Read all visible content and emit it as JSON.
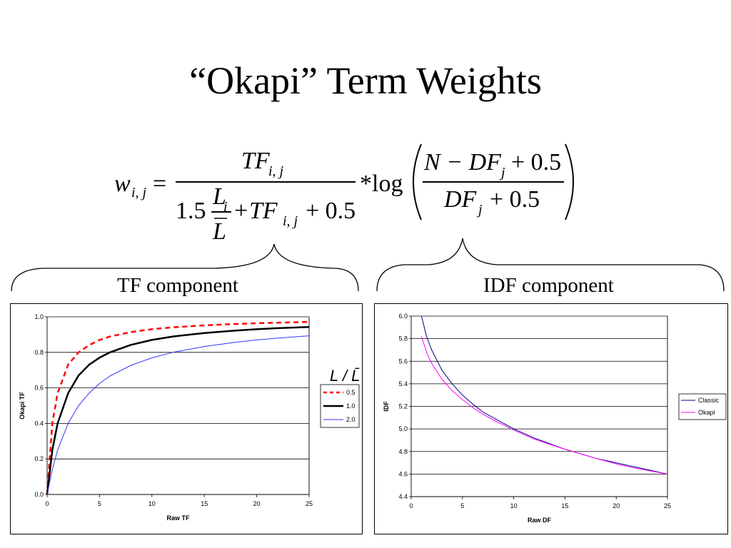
{
  "slide": {
    "title": "“Okapi” Term Weights",
    "tf_component_label": "TF component",
    "idf_component_label": "IDF component"
  },
  "formula": {
    "lhs_w": "w",
    "lhs_sub": "i, j",
    "num_tf": "TF",
    "num_sub": "i, j",
    "den_coef": "1.5",
    "den_L": "L",
    "den_L_sub": "i",
    "den_Lbar": "L",
    "den_plus_tf": "+TF",
    "den_tf_sub": "i, j",
    "den_plus": "+ 0.5",
    "times_log": "*log",
    "idf_num": "N − DF",
    "idf_num_sub": "j",
    "idf_num_plus": "+ 0.5",
    "idf_den": "DF",
    "idf_den_sub": "j",
    "idf_den_plus": "+ 0.5",
    "equals": "="
  },
  "chart_data": [
    {
      "type": "line",
      "xlabel": "Raw TF",
      "ylabel": "Okapi TF",
      "xlim": [
        0,
        25
      ],
      "ylim": [
        0,
        1.0
      ],
      "xticks": [
        0,
        5,
        10,
        15,
        20,
        25
      ],
      "yticks": [
        "0.0",
        "0.2",
        "0.4",
        "0.6",
        "0.8",
        "1.0"
      ],
      "legend_title": "L / L̄",
      "legend_position": "right",
      "grid": true,
      "series": [
        {
          "name": "0.5",
          "color": "#ff0000",
          "dash": "dash",
          "x": [
            0,
            0.5,
            1,
            2,
            3,
            4,
            5,
            6,
            8,
            10,
            12,
            15,
            18,
            20,
            22,
            25
          ],
          "y": [
            0,
            0.4,
            0.57,
            0.73,
            0.8,
            0.84,
            0.87,
            0.889,
            0.914,
            0.93,
            0.941,
            0.952,
            0.96,
            0.964,
            0.967,
            0.971
          ]
        },
        {
          "name": "1.0",
          "color": "#000000",
          "dash": "solid",
          "x": [
            0,
            0.5,
            1,
            2,
            3,
            4,
            5,
            6,
            8,
            10,
            12,
            15,
            18,
            20,
            22,
            25
          ],
          "y": [
            0,
            0.25,
            0.4,
            0.57,
            0.67,
            0.73,
            0.77,
            0.8,
            0.842,
            0.87,
            0.889,
            0.909,
            0.923,
            0.93,
            0.936,
            0.943
          ]
        },
        {
          "name": "2.0",
          "color": "#3333ff",
          "dash": "solid",
          "x": [
            0,
            0.5,
            1,
            2,
            3,
            4,
            5,
            6,
            8,
            10,
            12,
            15,
            18,
            20,
            22,
            25
          ],
          "y": [
            0,
            0.14,
            0.25,
            0.4,
            0.5,
            0.57,
            0.625,
            0.667,
            0.727,
            0.769,
            0.8,
            0.833,
            0.857,
            0.87,
            0.88,
            0.893
          ]
        }
      ]
    },
    {
      "type": "line",
      "xlabel": "Raw DF",
      "ylabel": "IDF",
      "xlim": [
        0,
        25
      ],
      "ylim": [
        4.4,
        6.0
      ],
      "xticks": [
        0,
        5,
        10,
        15,
        20,
        25
      ],
      "yticks": [
        "4.4",
        "4.6",
        "4.8",
        "5.0",
        "5.2",
        "5.4",
        "5.6",
        "5.8",
        "6.0"
      ],
      "legend_position": "right",
      "grid": true,
      "series": [
        {
          "name": "Classic",
          "color": "#000080",
          "x": [
            1,
            1.5,
            2,
            3,
            4,
            5,
            6,
            7,
            8,
            10,
            12,
            15,
            18,
            20,
            22,
            25
          ],
          "y": [
            6.0,
            5.82,
            5.7,
            5.52,
            5.4,
            5.3,
            5.22,
            5.15,
            5.1,
            5.0,
            4.92,
            4.82,
            4.74,
            4.7,
            4.66,
            4.6
          ]
        },
        {
          "name": "Okapi",
          "color": "#ff00ff",
          "x": [
            1,
            1.5,
            2,
            3,
            4,
            5,
            6,
            7,
            8,
            10,
            12,
            15,
            18,
            20,
            22,
            25
          ],
          "y": [
            5.82,
            5.68,
            5.58,
            5.44,
            5.34,
            5.26,
            5.19,
            5.13,
            5.08,
            4.99,
            4.91,
            4.82,
            4.74,
            4.69,
            4.65,
            4.6
          ]
        }
      ]
    }
  ]
}
